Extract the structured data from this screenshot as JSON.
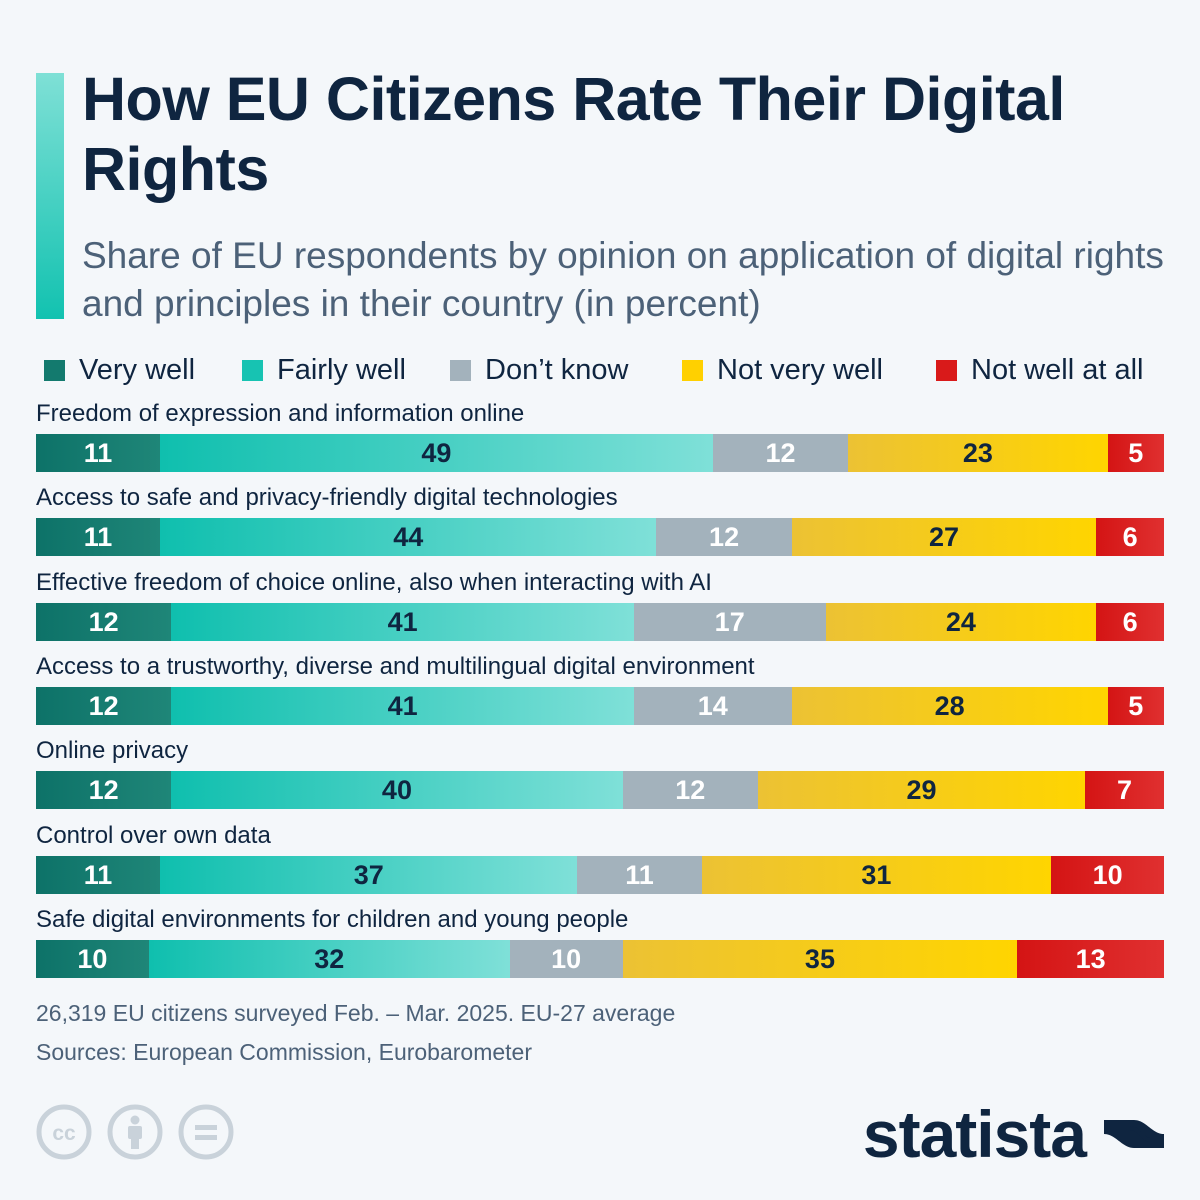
{
  "title": "How EU Citizens Rate Their Digital Rights",
  "subtitle": "Share of EU respondents by opinion on application of digital rights and principles in their country (in percent)",
  "legend": [
    {
      "label": "Very well",
      "color": "#137a6e"
    },
    {
      "label": "Fairly well",
      "color": "#17c3b2"
    },
    {
      "label": "Don’t know",
      "color": "#a3b2bc"
    },
    {
      "label": "Not very well",
      "color": "#ffd000"
    },
    {
      "label": "Not well at all",
      "color": "#d91a1a"
    }
  ],
  "chart_data": {
    "type": "bar",
    "orientation": "horizontal",
    "stacked": true,
    "categories": [
      "Freedom of expression and information online",
      "Access to safe and privacy-friendly digital technologies",
      "Effective freedom of choice online, also when interacting with AI",
      "Access to a trustworthy, diverse and multilingual digital environment",
      "Online privacy",
      "Control over own data",
      "Safe digital environments for children and young people"
    ],
    "series": [
      {
        "name": "Very well",
        "values": [
          11,
          11,
          12,
          12,
          12,
          11,
          10
        ]
      },
      {
        "name": "Fairly well",
        "values": [
          49,
          44,
          41,
          41,
          40,
          37,
          32
        ]
      },
      {
        "name": "Don’t know",
        "values": [
          12,
          12,
          17,
          14,
          12,
          11,
          10
        ]
      },
      {
        "name": "Not very well",
        "values": [
          23,
          27,
          24,
          28,
          29,
          31,
          35
        ]
      },
      {
        "name": "Not well at all",
        "values": [
          5,
          6,
          6,
          5,
          7,
          10,
          13
        ]
      }
    ],
    "legend_position": "top",
    "grid": false
  },
  "notes": {
    "survey": "26,319 EU citizens surveyed Feb. – Mar. 2025. EU-27 average",
    "sources": "Sources: European Commission, Eurobarometer"
  },
  "license_icons": [
    "creative-commons-icon",
    "attribution-icon",
    "no-derivatives-icon"
  ],
  "brand": {
    "name": "statista",
    "logo_icon": "statista-logo-icon"
  }
}
